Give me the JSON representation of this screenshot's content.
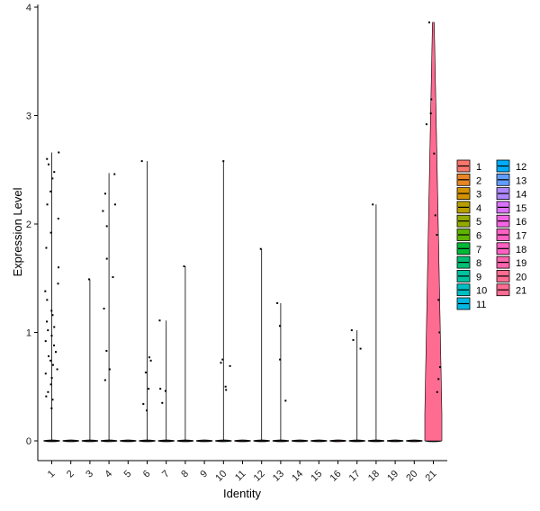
{
  "chart_data": {
    "type": "violin",
    "xlabel": "Identity",
    "ylabel": "Expression Level",
    "ylim": [
      0,
      4
    ],
    "yticks": [
      0,
      1,
      2,
      3,
      4
    ],
    "categories": [
      "1",
      "2",
      "3",
      "4",
      "5",
      "6",
      "7",
      "8",
      "9",
      "10",
      "11",
      "12",
      "13",
      "14",
      "15",
      "16",
      "17",
      "18",
      "19",
      "20",
      "21"
    ],
    "colors": [
      "#F8766D",
      "#E88526",
      "#D39200",
      "#B79F00",
      "#93AA00",
      "#5EB300",
      "#00BA38",
      "#00BF74",
      "#00C19F",
      "#00BFC4",
      "#00B9E3",
      "#00ADFA",
      "#619CFF",
      "#AE87FF",
      "#DB72FB",
      "#F564E3",
      "#FF61C3",
      "#FF61C3",
      "#FF65AE",
      "#FF6C91",
      "#FF6C91"
    ],
    "legend": {
      "position": "right",
      "col1": [
        "1",
        "2",
        "3",
        "4",
        "5",
        "6",
        "7",
        "8",
        "9",
        "10",
        "11"
      ],
      "col2": [
        "12",
        "13",
        "14",
        "15",
        "16",
        "17",
        "18",
        "19",
        "20",
        "21"
      ]
    },
    "violin_max": [
      2.66,
      0,
      1.49,
      2.47,
      0,
      2.58,
      1.11,
      1.61,
      0,
      2.58,
      0,
      1.77,
      1.27,
      0,
      0,
      0,
      1.02,
      2.18,
      0,
      0,
      3.86
    ],
    "points": [
      [
        0.3,
        0.38,
        0.41,
        0.45,
        0.52,
        0.58,
        0.62,
        0.66,
        0.7,
        0.74,
        0.78,
        0.82,
        0.88,
        0.92,
        0.97,
        1.02,
        1.05,
        1.1,
        1.16,
        1.2,
        1.3,
        1.38,
        1.45,
        1.6,
        1.78,
        1.92,
        2.05,
        2.18,
        2.3,
        2.42,
        2.48,
        2.55,
        2.6,
        2.66
      ],
      [],
      [
        1.49
      ],
      [
        0.56,
        0.66,
        0.83,
        1.22,
        1.51,
        1.68,
        1.98,
        2.12,
        2.18,
        2.28,
        2.46
      ],
      [],
      [
        0.28,
        0.34,
        0.48,
        0.63,
        0.74,
        0.77,
        2.58
      ],
      [
        0.35,
        0.46,
        0.48,
        1.11
      ],
      [
        1.61
      ],
      [],
      [
        0.47,
        0.5,
        0.69,
        0.72,
        0.75,
        2.58
      ],
      [],
      [
        1.77
      ],
      [
        0.37,
        0.75,
        1.06,
        1.27
      ],
      [],
      [],
      [],
      [
        0.93,
        0.85,
        1.02
      ],
      [
        2.18
      ],
      [],
      [],
      [
        0.45,
        0.57,
        0.68,
        1.0,
        1.3,
        1.9,
        2.08,
        2.65,
        2.92,
        3.02,
        3.15,
        3.86
      ]
    ]
  }
}
